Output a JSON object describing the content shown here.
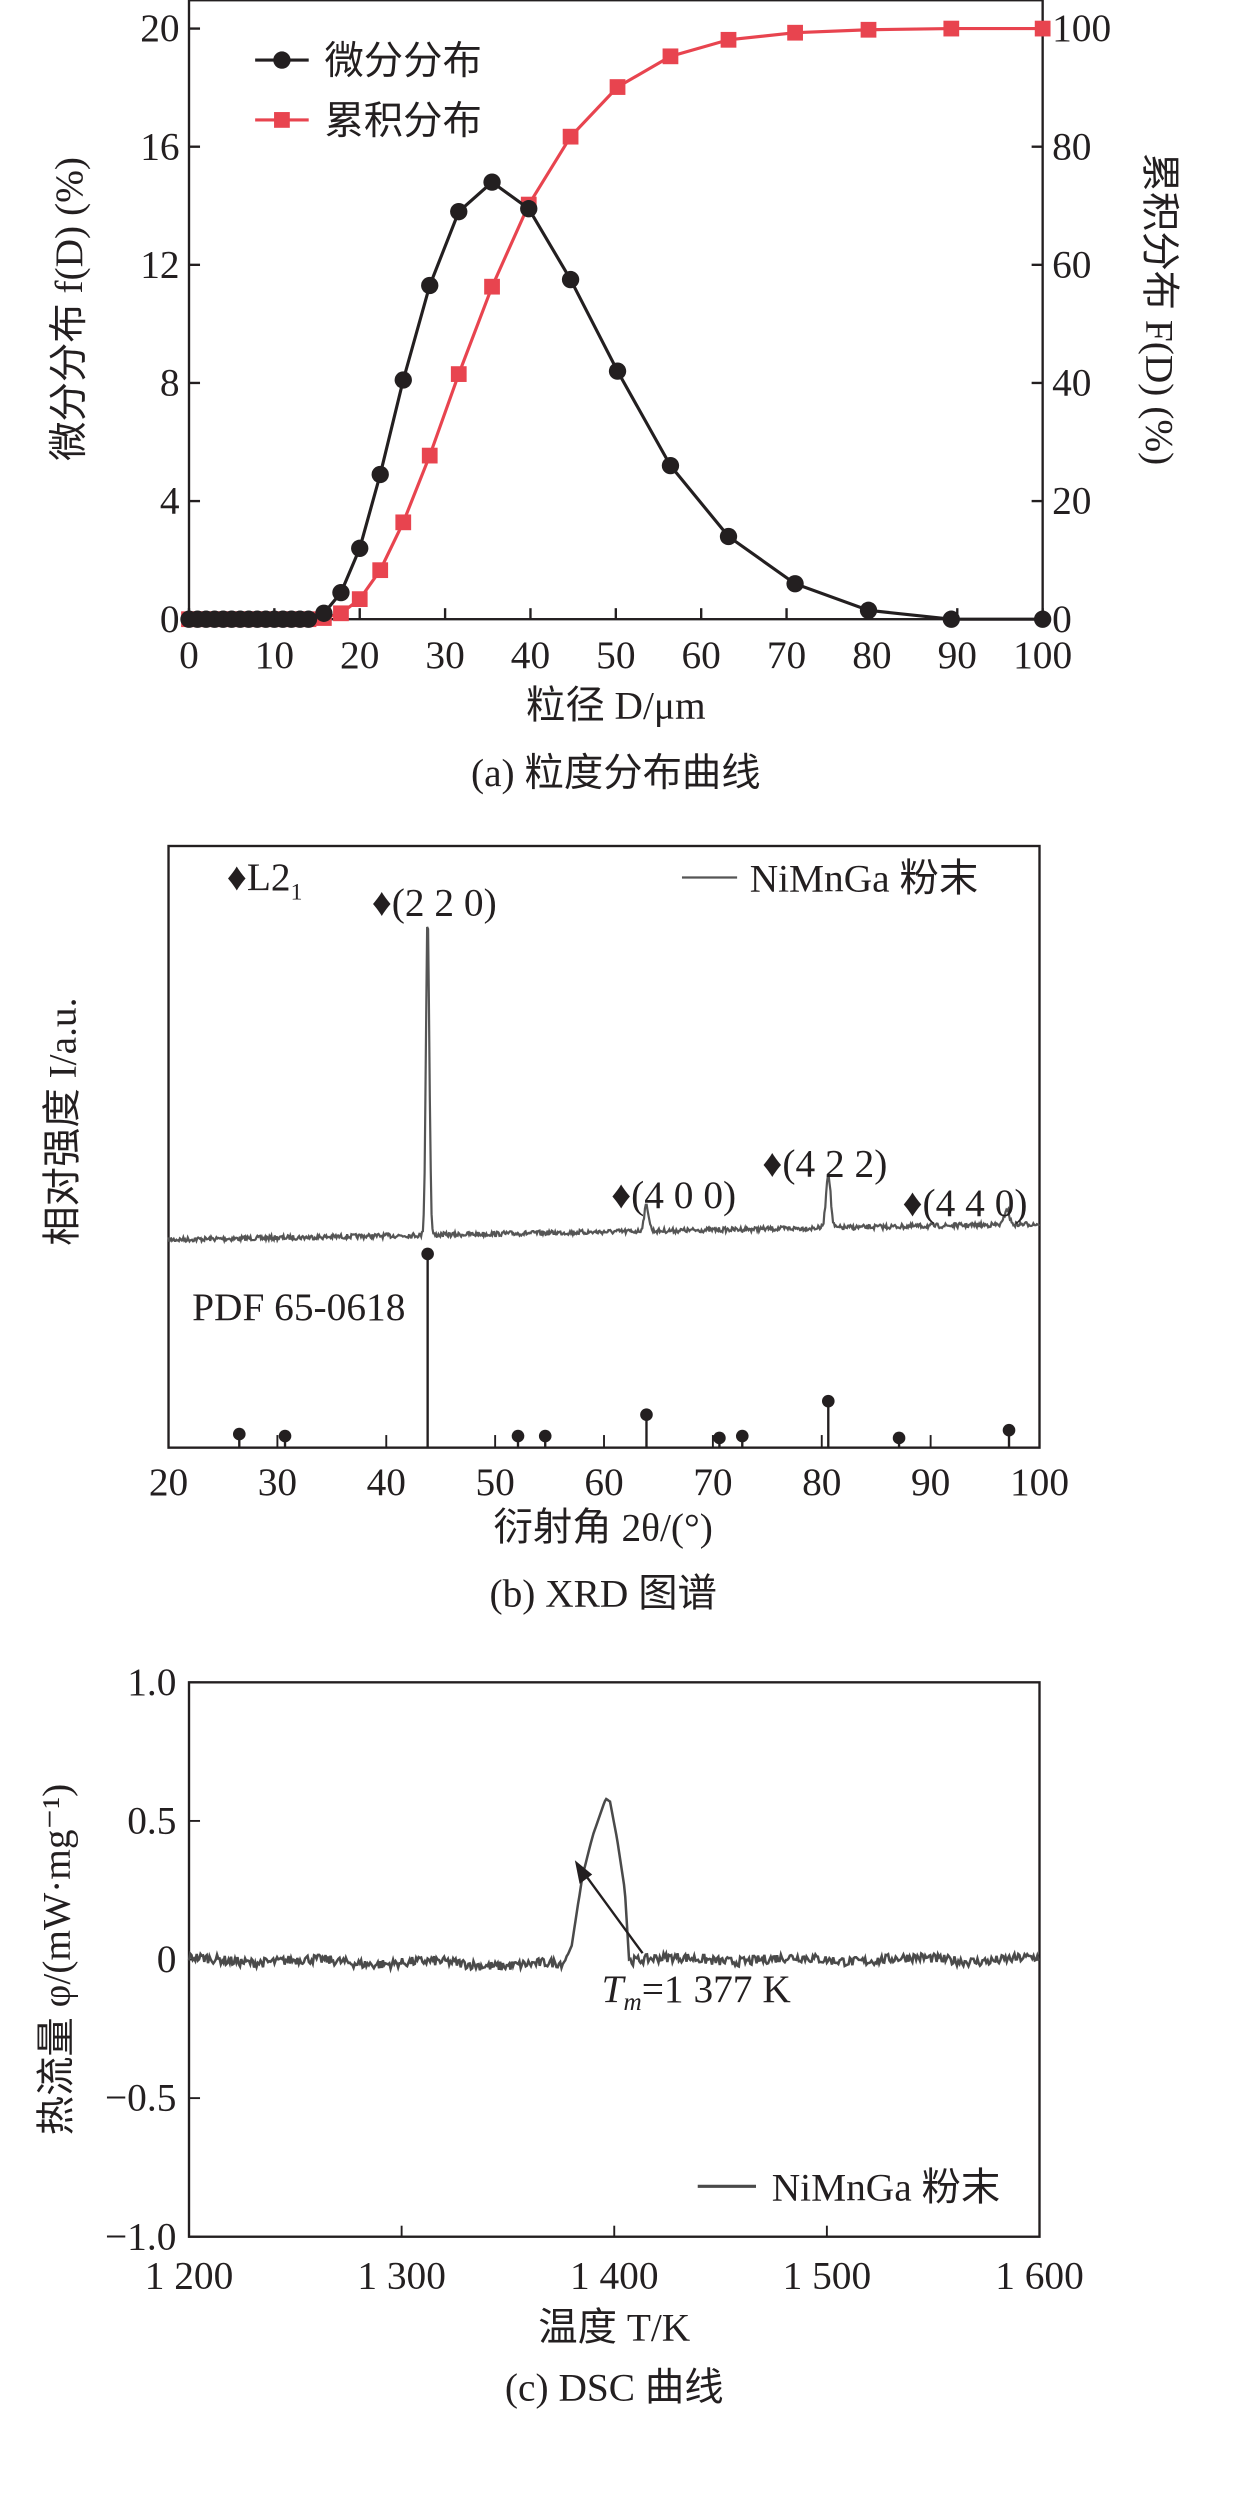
{
  "chart_data": [
    {
      "type": "line",
      "caption": "(a) 粒度分布曲线",
      "xlabel": "粒径 D/μm",
      "ylabel": "微分分布 f(D) (%)",
      "ylabel_right": "累积分布 F(D) (%)",
      "xlim": [
        0,
        100
      ],
      "ylim": [
        0,
        20
      ],
      "ylim_right": [
        0,
        100
      ],
      "xticks": [
        "0",
        "10",
        "20",
        "30",
        "40",
        "50",
        "60",
        "70",
        "80",
        "90",
        "100"
      ],
      "yticks": [
        "0",
        "4",
        "8",
        "12",
        "16",
        "20"
      ],
      "yticks_right": [
        "0",
        "20",
        "40",
        "60",
        "80",
        "100"
      ],
      "legend_position": "top-left",
      "series": [
        {
          "name": "微分分布",
          "axis": "left",
          "color": "#231f20",
          "marker": "circle",
          "x": [
            0,
            1,
            2,
            3,
            4,
            5,
            6,
            7,
            8,
            9,
            10,
            11,
            12,
            13,
            14,
            15.8,
            17.8,
            20,
            22.4,
            25.1,
            28.2,
            31.6,
            35.5,
            39.8,
            44.7,
            50.2,
            56.4,
            63.2,
            71,
            79.6,
            89.3,
            100
          ],
          "y": [
            0,
            0,
            0,
            0,
            0,
            0,
            0,
            0,
            0,
            0,
            0,
            0,
            0,
            0,
            0,
            0.2,
            0.9,
            2.4,
            4.9,
            8.1,
            11.3,
            13.8,
            14.8,
            13.9,
            11.5,
            8.4,
            5.2,
            2.8,
            1.2,
            0.3,
            0,
            0
          ]
        },
        {
          "name": "累积分布",
          "axis": "right",
          "color": "#e8444f",
          "marker": "square",
          "x": [
            0,
            1,
            2,
            3,
            4,
            5,
            6,
            7,
            8,
            9,
            10,
            11,
            12,
            13,
            14,
            15.8,
            17.8,
            20,
            22.4,
            25.1,
            28.2,
            31.6,
            35.5,
            39.8,
            44.7,
            50.2,
            56.4,
            63.2,
            71,
            79.6,
            89.3,
            100
          ],
          "y": [
            0,
            0,
            0,
            0,
            0,
            0,
            0,
            0,
            0,
            0,
            0,
            0,
            0,
            0,
            0,
            0.2,
            1,
            3.4,
            8.3,
            16.4,
            27.7,
            41.5,
            56.3,
            70.2,
            81.7,
            90.1,
            95.3,
            98.1,
            99.3,
            99.8,
            100,
            100
          ]
        }
      ]
    },
    {
      "type": "line",
      "caption": "(b) XRD 图谱",
      "xlabel": "衍射角 2θ/(°)",
      "ylabel": "相对强度 I/a.u.",
      "xlim": [
        20,
        100
      ],
      "xticks": [
        "20",
        "30",
        "40",
        "50",
        "60",
        "70",
        "80",
        "90",
        "100"
      ],
      "legend": "NiMnGa 粉末",
      "legend_position": "top-right",
      "phase_label": "♦L2",
      "phase_sub": "1",
      "reference_label": "PDF 65-0618",
      "peaks": [
        {
          "label": "♦(2 2 0)",
          "two_theta": 43.8,
          "intensity": 100
        },
        {
          "label": "♦(4 0 0)",
          "two_theta": 63.9,
          "intensity": 8
        },
        {
          "label": "♦(4 2 2)",
          "two_theta": 80.6,
          "intensity": 17
        },
        {
          "label": "♦(4 4 0)",
          "two_theta": 97.0,
          "intensity": 5
        }
      ],
      "reference_lines": {
        "two_theta": [
          26.5,
          30.7,
          43.8,
          52.1,
          54.6,
          63.9,
          70.6,
          72.7,
          80.6,
          87.1,
          97.2
        ],
        "intensity": [
          7,
          6,
          100,
          6,
          6,
          17,
          5,
          6,
          24,
          5,
          9
        ]
      }
    },
    {
      "type": "line",
      "caption": "(c) DSC 曲线",
      "xlabel": "温度 T/K",
      "ylabel": "热流量 φ/(mW·mg⁻¹)",
      "xlim": [
        1200,
        1600
      ],
      "ylim": [
        -1.0,
        1.0
      ],
      "xticks": [
        "1 200",
        "1 300",
        "1 400",
        "1 500",
        "1 600"
      ],
      "yticks": [
        "−1.0",
        "−0.5",
        "0",
        "0.5",
        "1.0"
      ],
      "legend": "NiMnGa 粉末",
      "legend_position": "bottom-right",
      "annotation": {
        "text_main": "T",
        "text_sub": "m",
        "text_rest": "=1 377 K",
        "x": 1377,
        "y": -0.02
      },
      "key_points": {
        "x": [
          1200,
          1376,
          1380,
          1385,
          1390,
          1396,
          1398,
          1401,
          1405,
          1407,
          1600
        ],
        "y": [
          0,
          -0.02,
          0.05,
          0.3,
          0.45,
          0.58,
          0.57,
          0.45,
          0.25,
          0,
          0
        ]
      },
      "color": "#4a4a4a"
    }
  ]
}
